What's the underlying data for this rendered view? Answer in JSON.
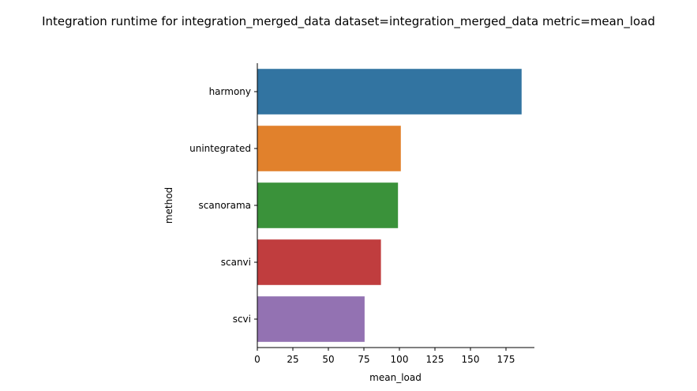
{
  "chart_data": {
    "type": "bar",
    "orientation": "horizontal",
    "title": "Integration runtime for integration_merged_data dataset=integration_merged_data metric=mean_load",
    "xlabel": "mean_load",
    "ylabel": "method",
    "categories": [
      "harmony",
      "unintegrated",
      "scanorama",
      "scanvi",
      "scvi"
    ],
    "values": [
      186,
      101,
      99,
      87,
      75.5
    ],
    "colors": [
      "#3274a1",
      "#e1812c",
      "#3a923a",
      "#c03d3e",
      "#9372b2"
    ],
    "xlim": [
      0,
      195
    ],
    "xticks": [
      0,
      25,
      50,
      75,
      100,
      125,
      150,
      175
    ],
    "grid": false,
    "legend": "none"
  }
}
